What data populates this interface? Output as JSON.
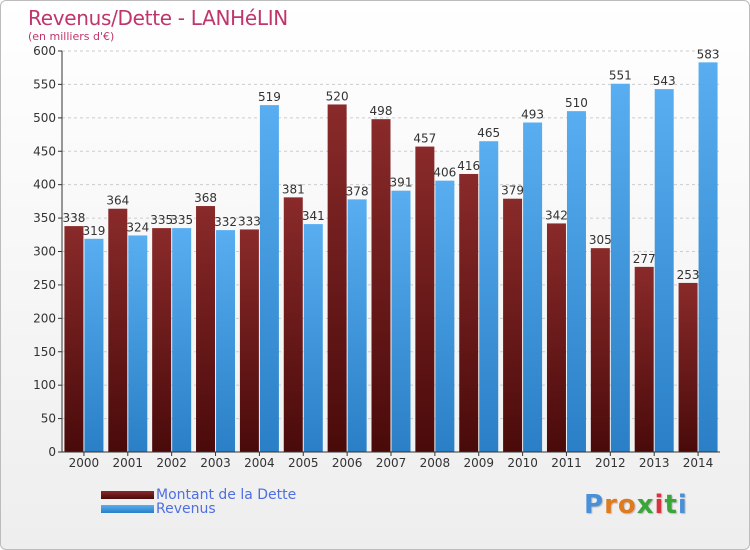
{
  "title": "Revenus/Dette - LANHéLIN",
  "subtitle": "(en milliers d'€)",
  "logo": {
    "text": "Proxiti",
    "letters": [
      "P",
      "r",
      "o",
      "x",
      "i",
      "t",
      "i"
    ],
    "colors": [
      "#4a90d9",
      "#e07a1f",
      "#e07a1f",
      "#3aa63a",
      "#d9333f",
      "#3aa63a",
      "#4a90d9"
    ]
  },
  "colors": {
    "dette": "#7a1e1e",
    "revenus": "#3d9be6",
    "grid": "#cccccc",
    "title": "#c0356b",
    "legend_text": "#4f6fe0"
  },
  "chart_data": {
    "type": "bar",
    "categories": [
      "2000",
      "2001",
      "2002",
      "2003",
      "2004",
      "2005",
      "2006",
      "2007",
      "2008",
      "2009",
      "2010",
      "2011",
      "2012",
      "2013",
      "2014"
    ],
    "series": [
      {
        "name": "Montant de la Dette",
        "values": [
          338,
          364,
          335,
          368,
          333,
          381,
          520,
          498,
          457,
          416,
          379,
          342,
          305,
          277,
          253
        ]
      },
      {
        "name": "Revenus",
        "values": [
          319,
          324,
          335,
          332,
          519,
          341,
          378,
          391,
          406,
          465,
          493,
          510,
          551,
          543,
          583
        ]
      }
    ],
    "title": "Revenus/Dette - LANHéLIN",
    "xlabel": "",
    "ylabel": "",
    "ylim": [
      0,
      600
    ],
    "yticks": [
      0,
      50,
      100,
      150,
      200,
      250,
      300,
      350,
      400,
      450,
      500,
      550,
      600
    ],
    "grid": true,
    "legend": "bottom-left"
  }
}
